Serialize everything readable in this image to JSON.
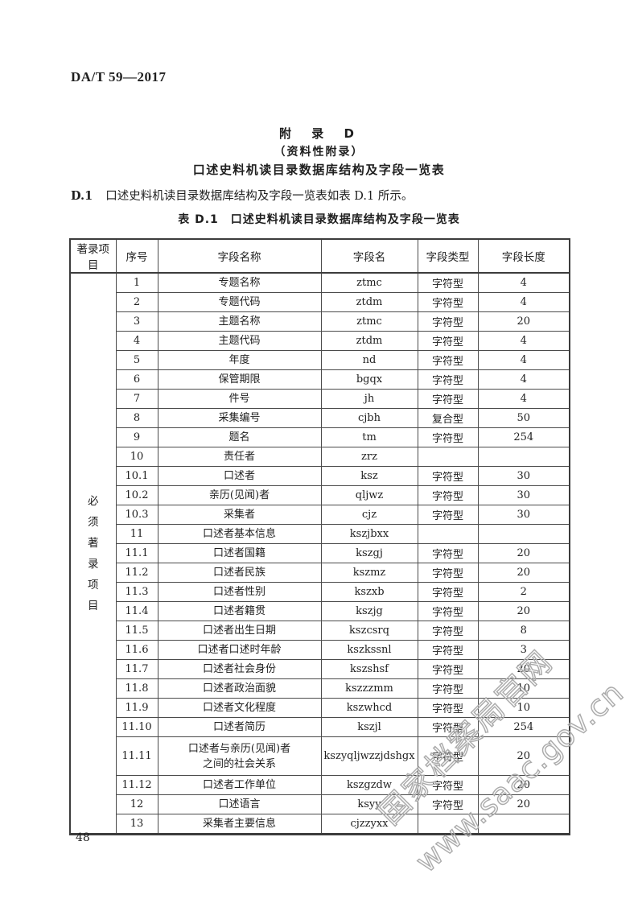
{
  "header": {
    "code": "DA/T 59—2017"
  },
  "headings": {
    "appendix": "附 录 D",
    "note": "（资料性附录）",
    "subject": "口述史料机读目录数据库结构及字段一览表"
  },
  "clause": {
    "label": "D.1",
    "text": "口述史料机读目录数据库结构及字段一览表如表 D.1 所示。"
  },
  "table": {
    "caption": "表 D.1　口述史料机读目录数据库结构及字段一览表",
    "group_label": "必须著录项目",
    "columns": [
      "著录项目",
      "序号",
      "字段名称",
      "字段名",
      "字段类型",
      "字段长度"
    ],
    "rows": [
      {
        "no": "1",
        "name": "专题名称",
        "field": "ztmc",
        "type": "字符型",
        "len": "4"
      },
      {
        "no": "2",
        "name": "专题代码",
        "field": "ztdm",
        "type": "字符型",
        "len": "4"
      },
      {
        "no": "3",
        "name": "主题名称",
        "field": "ztmc",
        "type": "字符型",
        "len": "20"
      },
      {
        "no": "4",
        "name": "主题代码",
        "field": "ztdm",
        "type": "字符型",
        "len": "4"
      },
      {
        "no": "5",
        "name": "年度",
        "field": "nd",
        "type": "字符型",
        "len": "4"
      },
      {
        "no": "6",
        "name": "保管期限",
        "field": "bgqx",
        "type": "字符型",
        "len": "4"
      },
      {
        "no": "7",
        "name": "件号",
        "field": "jh",
        "type": "字符型",
        "len": "4"
      },
      {
        "no": "8",
        "name": "采集编号",
        "field": "cjbh",
        "type": "复合型",
        "len": "50"
      },
      {
        "no": "9",
        "name": "题名",
        "field": "tm",
        "type": "字符型",
        "len": "254"
      },
      {
        "no": "10",
        "name": "责任者",
        "field": "zrz",
        "type": "",
        "len": ""
      },
      {
        "no": "10.1",
        "name": "口述者",
        "field": "ksz",
        "type": "字符型",
        "len": "30"
      },
      {
        "no": "10.2",
        "name": "亲历(见闻)者",
        "field": "qljwz",
        "type": "字符型",
        "len": "30"
      },
      {
        "no": "10.3",
        "name": "采集者",
        "field": "cjz",
        "type": "字符型",
        "len": "30"
      },
      {
        "no": "11",
        "name": "口述者基本信息",
        "field": "kszjbxx",
        "type": "",
        "len": ""
      },
      {
        "no": "11.1",
        "name": "口述者国籍",
        "field": "kszgj",
        "type": "字符型",
        "len": "20"
      },
      {
        "no": "11.2",
        "name": "口述者民族",
        "field": "kszmz",
        "type": "字符型",
        "len": "20"
      },
      {
        "no": "11.3",
        "name": "口述者性别",
        "field": "kszxb",
        "type": "字符型",
        "len": "2"
      },
      {
        "no": "11.4",
        "name": "口述者籍贯",
        "field": "kszjg",
        "type": "字符型",
        "len": "20"
      },
      {
        "no": "11.5",
        "name": "口述者出生日期",
        "field": "kszcsrq",
        "type": "字符型",
        "len": "8"
      },
      {
        "no": "11.6",
        "name": "口述者口述时年龄",
        "field": "kszkssnl",
        "type": "字符型",
        "len": "3"
      },
      {
        "no": "11.7",
        "name": "口述者社会身份",
        "field": "kszshsf",
        "type": "字符型",
        "len": "20"
      },
      {
        "no": "11.8",
        "name": "口述者政治面貌",
        "field": "kszzzmm",
        "type": "字符型",
        "len": "10"
      },
      {
        "no": "11.9",
        "name": "口述者文化程度",
        "field": "kszwhcd",
        "type": "字符型",
        "len": "10"
      },
      {
        "no": "11.10",
        "name": "口述者简历",
        "field": "kszjl",
        "type": "字符型",
        "len": "254"
      },
      {
        "no": "11.11",
        "name": "口述者与亲历(见闻)者\n之间的社会关系",
        "field": "kszyqljwzzjdshgx",
        "type": "字符型",
        "len": "20"
      },
      {
        "no": "11.12",
        "name": "口述者工作单位",
        "field": "kszgzdw",
        "type": "字符型",
        "len": "20"
      },
      {
        "no": "12",
        "name": "口述语言",
        "field": "ksyy",
        "type": "字符型",
        "len": "20"
      },
      {
        "no": "13",
        "name": "采集者主要信息",
        "field": "cjzzyxx",
        "type": "",
        "len": ""
      }
    ]
  },
  "watermark": {
    "line1": "国家档案局官网",
    "line2": "www.saac.gov.cn"
  },
  "footer": {
    "page_number": "48"
  },
  "colors": {
    "border": "#3c3c3c",
    "text": "#1f1f1f",
    "watermark": "#aaaaaa"
  }
}
